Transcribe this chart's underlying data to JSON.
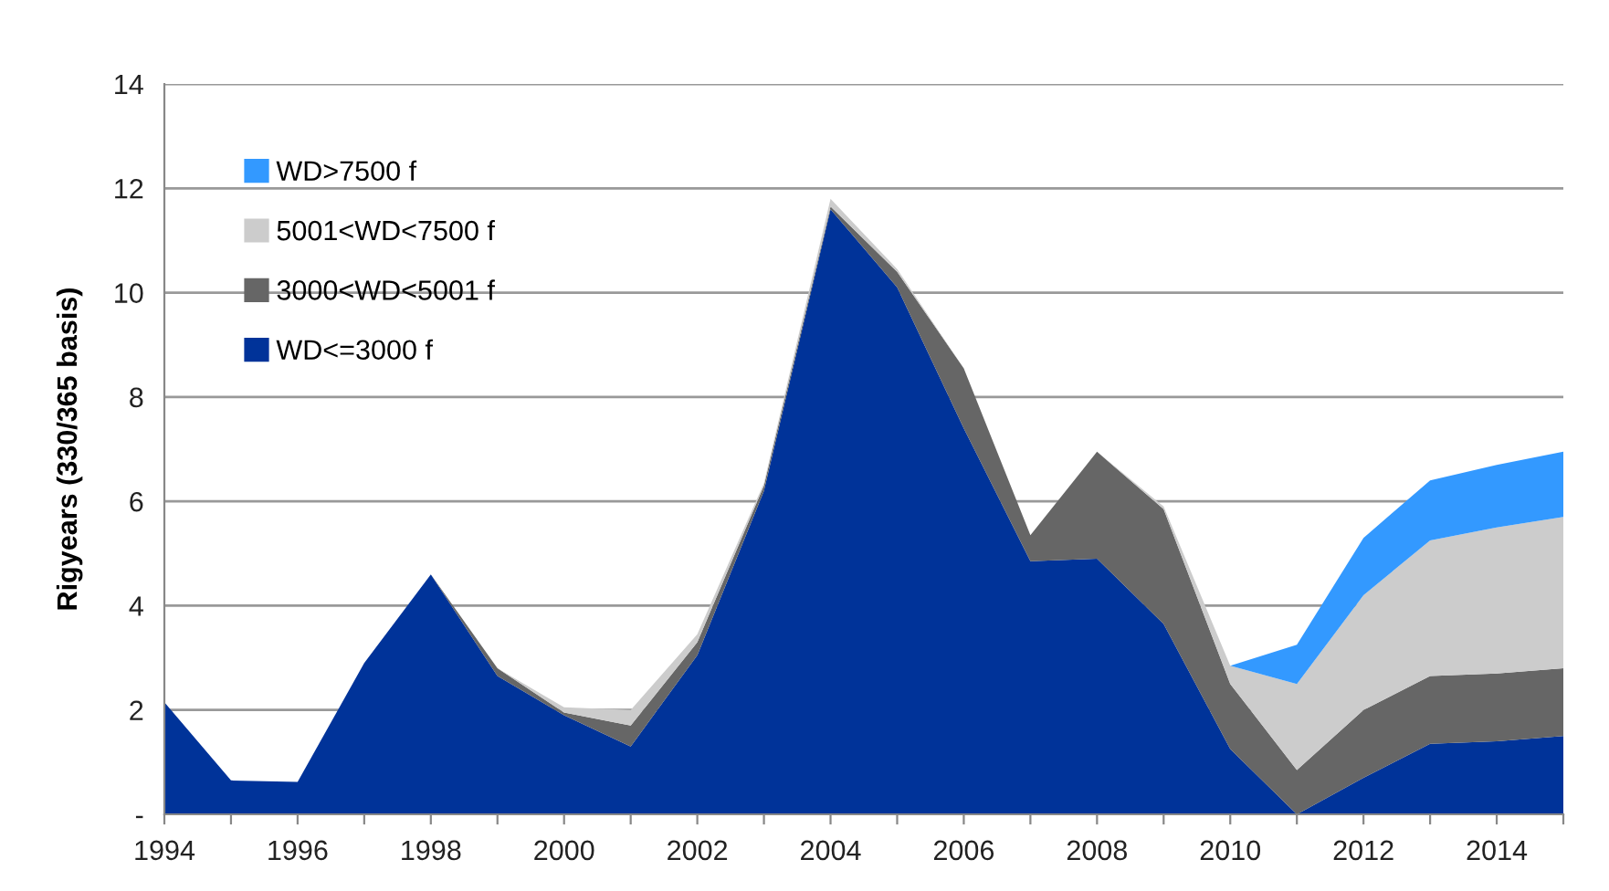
{
  "chart_data": {
    "type": "area",
    "stacked": true,
    "ylabel": "Rigyears (330/365 basis)",
    "x": [
      1994,
      1995,
      1996,
      1997,
      1998,
      1999,
      2000,
      2001,
      2002,
      2003,
      2004,
      2005,
      2006,
      2007,
      2008,
      2009,
      2010,
      2011,
      2012,
      2013,
      2014,
      2015
    ],
    "series": [
      {
        "name": "WD<=3000 f",
        "color": "#003399",
        "values": [
          2.15,
          0.65,
          0.62,
          2.9,
          4.6,
          2.65,
          1.9,
          1.3,
          3.05,
          6.2,
          11.6,
          10.1,
          7.4,
          4.85,
          4.9,
          3.65,
          1.25,
          0.0,
          0.7,
          1.35,
          1.4,
          1.5
        ]
      },
      {
        "name": "3000<WD<5001 f",
        "color": "#666666",
        "values": [
          0,
          0,
          0,
          0,
          0,
          0.15,
          0.05,
          0.4,
          0.25,
          0.1,
          0.05,
          0.3,
          1.15,
          0.5,
          2.05,
          2.2,
          1.25,
          0.85,
          1.3,
          1.3,
          1.3,
          1.3
        ]
      },
      {
        "name": "5001<WD<7500 f",
        "color": "#cccccc",
        "values": [
          0,
          0,
          0,
          0,
          0,
          0,
          0.1,
          0.3,
          0.15,
          0.05,
          0.15,
          0.05,
          0,
          0,
          0,
          0.05,
          0.35,
          1.65,
          2.2,
          2.6,
          2.8,
          2.9
        ]
      },
      {
        "name": "WD>7500 f",
        "color": "#3399ff",
        "values": [
          null,
          null,
          null,
          null,
          null,
          null,
          null,
          null,
          null,
          null,
          null,
          null,
          null,
          null,
          null,
          null,
          0,
          0.75,
          1.1,
          1.15,
          1.2,
          1.25
        ]
      }
    ],
    "xlim": [
      1994,
      2015
    ],
    "xticks": [
      1994,
      {
        "value": 1995,
        "label": null
      },
      1996,
      {
        "value": 1997,
        "label": null
      },
      1998,
      {
        "value": 1999,
        "label": null
      },
      2000,
      {
        "value": 2001,
        "label": null
      },
      2002,
      {
        "value": 2003,
        "label": null
      },
      2004,
      {
        "value": 2005,
        "label": null
      },
      2006,
      {
        "value": 2007,
        "label": null
      },
      2008,
      {
        "value": 2009,
        "label": null
      },
      2010,
      {
        "value": 2011,
        "label": null
      },
      2012,
      {
        "value": 2013,
        "label": null
      },
      2014,
      {
        "value": 2015,
        "label": null
      }
    ],
    "ylim": [
      0,
      14
    ],
    "yticks": [
      {
        "value": 0,
        "label": "-"
      },
      2,
      4,
      6,
      8,
      10,
      12,
      14
    ],
    "grid": "y",
    "legend": "top left"
  }
}
